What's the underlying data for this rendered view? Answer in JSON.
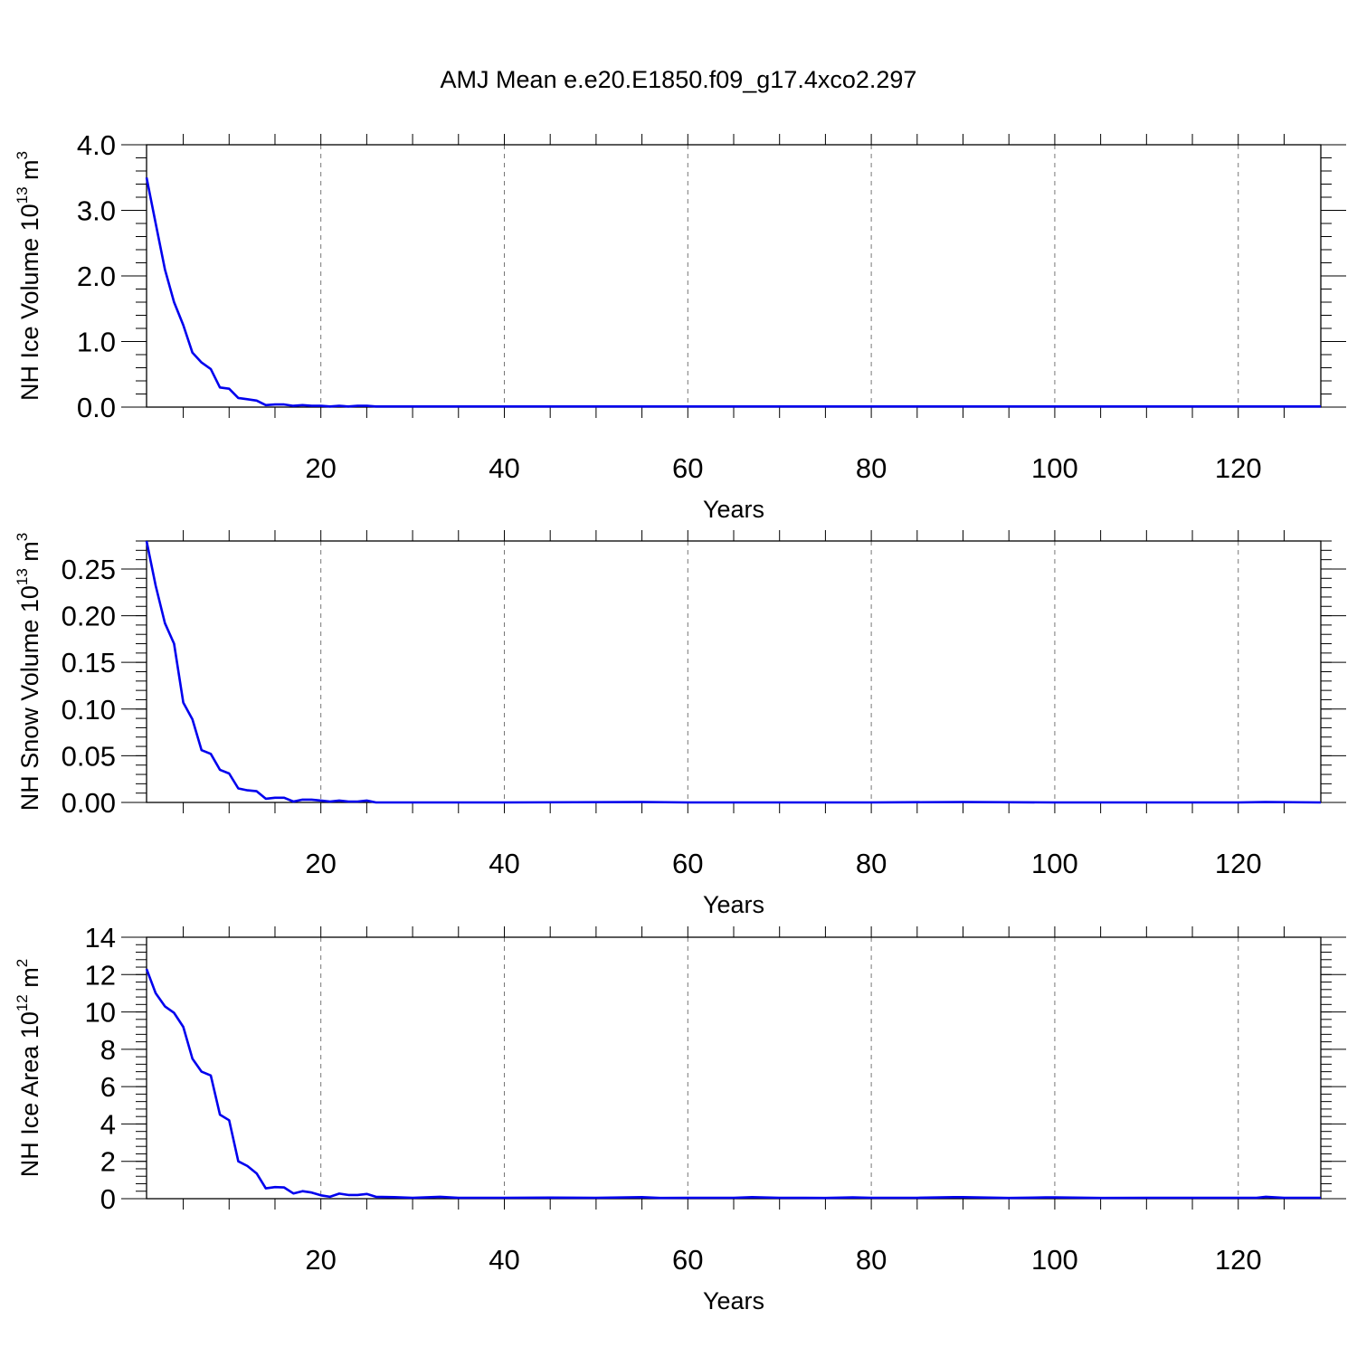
{
  "figure": {
    "title": "AMJ Mean e.e20.E1850.f09_g17.4xco2.297"
  },
  "chart_data": [
    {
      "type": "line",
      "ylabel": {
        "prefix": "NH Ice Volume 10",
        "exp1": "13",
        "mid": " m",
        "exp2": "3"
      },
      "xlabel": "Years",
      "xlim": [
        1,
        129
      ],
      "ylim": [
        0,
        4
      ],
      "x_ticks": [
        20,
        40,
        60,
        80,
        100,
        120
      ],
      "x_ticklabels": [
        "20",
        "40",
        "60",
        "80",
        "100",
        "120"
      ],
      "y_ticks": [
        0,
        1,
        2,
        3,
        4
      ],
      "y_ticklabels": [
        "0.0",
        "1.0",
        "2.0",
        "3.0",
        "4.0"
      ],
      "grid": "vertical dashed",
      "series": [
        {
          "color": "#0000ee",
          "x": [
            1,
            2,
            3,
            4,
            5,
            6,
            7,
            8,
            9,
            10,
            11,
            12,
            13,
            14,
            15,
            16,
            17,
            18,
            19,
            20,
            21,
            22,
            23,
            24,
            25,
            26,
            27,
            28,
            29,
            30,
            40,
            55,
            60,
            70,
            80,
            90,
            100,
            110,
            120,
            123,
            129
          ],
          "y": [
            3.5,
            2.8,
            2.1,
            1.6,
            1.25,
            0.83,
            0.68,
            0.58,
            0.3,
            0.28,
            0.14,
            0.12,
            0.1,
            0.03,
            0.04,
            0.04,
            0.02,
            0.03,
            0.02,
            0.02,
            0.01,
            0.02,
            0.01,
            0.02,
            0.02,
            0.01,
            0.01,
            0.01,
            0.01,
            0.01,
            0.01,
            0.01,
            0.01,
            0.01,
            0.01,
            0.01,
            0.01,
            0.01,
            0.01,
            0.01,
            0.01
          ]
        }
      ]
    },
    {
      "type": "line",
      "ylabel": {
        "prefix": "NH Snow Volume 10",
        "exp1": "13",
        "mid": " m",
        "exp2": "3"
      },
      "xlabel": "Years",
      "xlim": [
        1,
        129
      ],
      "ylim": [
        0,
        0.28
      ],
      "x_ticks": [
        20,
        40,
        60,
        80,
        100,
        120
      ],
      "x_ticklabels": [
        "20",
        "40",
        "60",
        "80",
        "100",
        "120"
      ],
      "y_ticks": [
        0,
        0.05,
        0.1,
        0.15,
        0.2,
        0.25
      ],
      "y_ticklabels": [
        "0.00",
        "0.05",
        "0.10",
        "0.15",
        "0.20",
        "0.25"
      ],
      "grid": "vertical dashed",
      "series": [
        {
          "color": "#0000ee",
          "x": [
            1,
            2,
            3,
            4,
            5,
            6,
            7,
            8,
            9,
            10,
            11,
            12,
            13,
            14,
            15,
            16,
            17,
            18,
            19,
            20,
            21,
            22,
            23,
            24,
            25,
            26,
            27,
            30,
            40,
            55,
            60,
            70,
            80,
            90,
            100,
            110,
            120,
            123,
            129
          ],
          "y": [
            0.28,
            0.232,
            0.192,
            0.17,
            0.107,
            0.089,
            0.056,
            0.052,
            0.035,
            0.031,
            0.015,
            0.013,
            0.012,
            0.004,
            0.005,
            0.005,
            0.001,
            0.003,
            0.003,
            0.002,
            0.001,
            0.002,
            0.001,
            0.001,
            0.002,
            0.0,
            0.0,
            0.0,
            0.0,
            0.0005,
            0.0,
            0.0,
            0.0,
            0.0005,
            0.0,
            0.0,
            0.0,
            0.0005,
            0.0
          ]
        }
      ]
    },
    {
      "type": "line",
      "ylabel": {
        "prefix": "NH Ice Area 10",
        "exp1": "12",
        "mid": " m",
        "exp2": "2"
      },
      "xlabel": "Years",
      "xlim": [
        1,
        129
      ],
      "ylim": [
        0,
        14
      ],
      "x_ticks": [
        20,
        40,
        60,
        80,
        100,
        120
      ],
      "x_ticklabels": [
        "20",
        "40",
        "60",
        "80",
        "100",
        "120"
      ],
      "y_ticks": [
        0,
        2,
        4,
        6,
        8,
        10,
        12,
        14
      ],
      "y_ticklabels": [
        "0",
        "2",
        "4",
        "6",
        "8",
        "10",
        "12",
        "14"
      ],
      "grid": "vertical dashed",
      "series": [
        {
          "color": "#0000ee",
          "x": [
            1,
            2,
            3,
            4,
            5,
            6,
            7,
            8,
            9,
            10,
            11,
            12,
            13,
            14,
            15,
            16,
            17,
            18,
            19,
            20,
            21,
            22,
            23,
            24,
            25,
            26,
            28,
            30,
            32,
            33,
            35,
            40,
            45,
            50,
            55,
            57,
            60,
            65,
            67,
            70,
            75,
            78,
            80,
            85,
            89,
            90,
            95,
            99,
            100,
            105,
            110,
            115,
            120,
            122,
            123,
            125,
            129
          ],
          "y": [
            12.3,
            11.0,
            10.3,
            9.95,
            9.2,
            7.5,
            6.8,
            6.6,
            4.5,
            4.2,
            2.0,
            1.75,
            1.35,
            0.55,
            0.62,
            0.6,
            0.28,
            0.4,
            0.33,
            0.18,
            0.1,
            0.27,
            0.2,
            0.2,
            0.25,
            0.1,
            0.08,
            0.05,
            0.08,
            0.1,
            0.05,
            0.05,
            0.06,
            0.05,
            0.08,
            0.04,
            0.05,
            0.05,
            0.08,
            0.05,
            0.04,
            0.07,
            0.05,
            0.05,
            0.08,
            0.08,
            0.04,
            0.07,
            0.07,
            0.04,
            0.05,
            0.05,
            0.05,
            0.05,
            0.1,
            0.05,
            0.05
          ]
        }
      ]
    }
  ]
}
